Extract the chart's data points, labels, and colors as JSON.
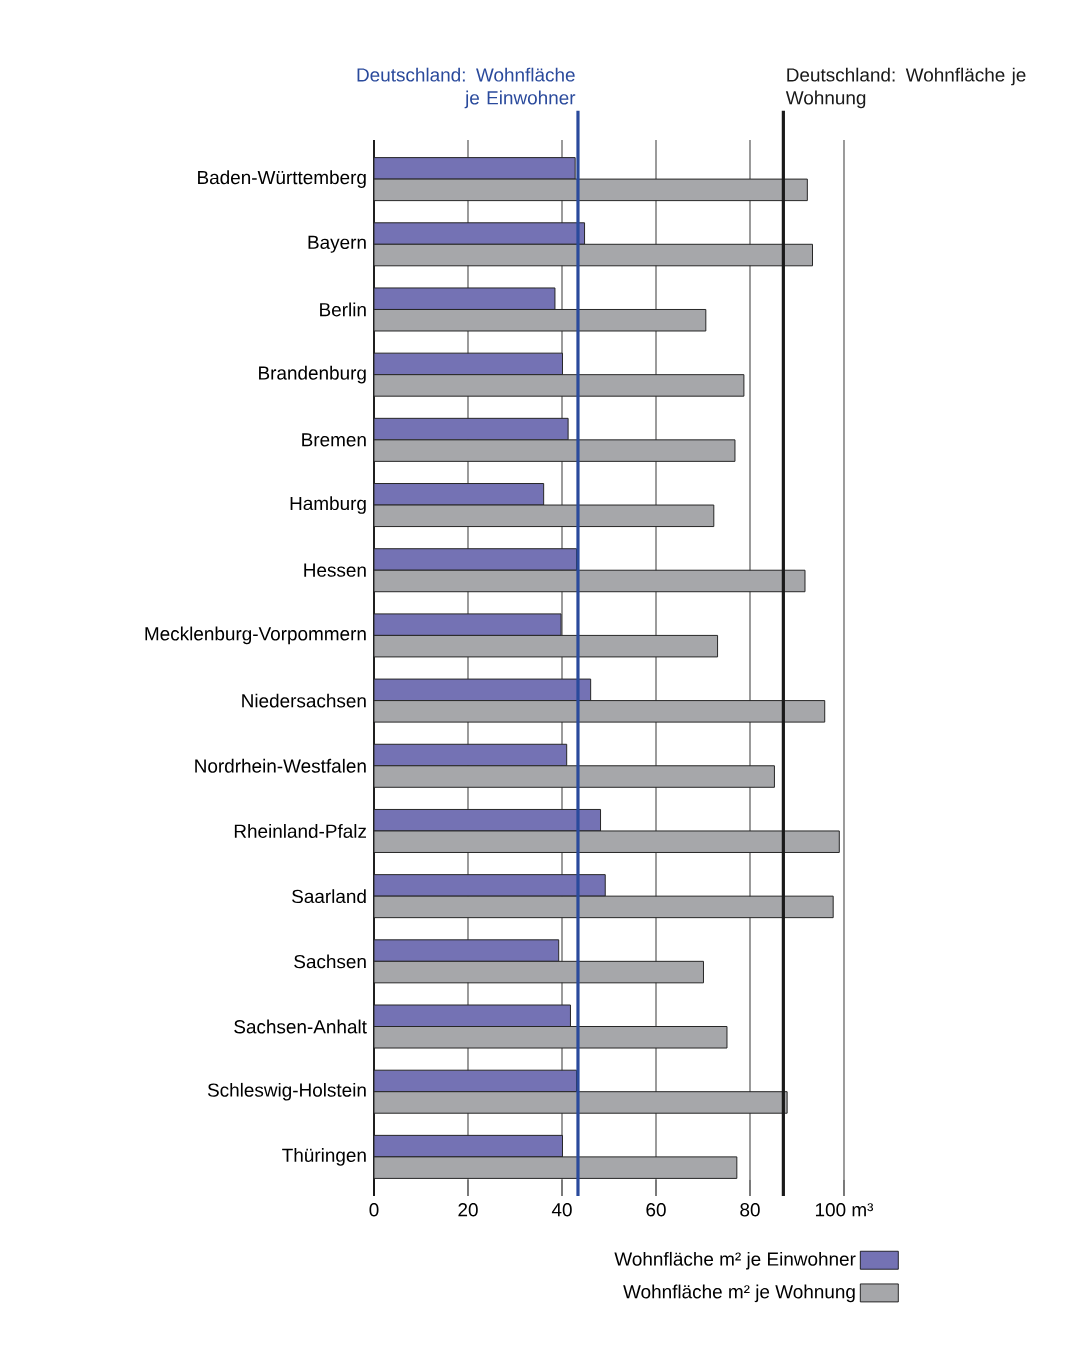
{
  "chart_data": {
    "type": "bar",
    "orientation": "horizontal",
    "categories": [
      "Baden-Württemberg",
      "Bayern",
      "Berlin",
      "Brandenburg",
      "Bremen",
      "Hamburg",
      "Hessen",
      "Mecklenburg-Vorpommern",
      "Niedersachsen",
      "Nordrhein-Westfalen",
      "Rheinland-Pfalz",
      "Saarland",
      "Sachsen",
      "Sachsen-Anhalt",
      "Schleswig-Holstein",
      "Thüringen"
    ],
    "series": [
      {
        "name": "Wohnfläche m² je Einwohner",
        "color": "#7472b4",
        "values": [
          42.8,
          44.8,
          38.5,
          40.1,
          41.3,
          36.1,
          43.1,
          39.8,
          46.1,
          41.0,
          48.2,
          49.2,
          39.3,
          41.8,
          43.1,
          40.1
        ]
      },
      {
        "name": "Wohnfläche m² je Wohnung",
        "color": "#a6a7aa",
        "values": [
          92.2,
          93.3,
          70.6,
          78.7,
          76.8,
          72.3,
          91.7,
          73.1,
          95.9,
          85.2,
          99.0,
          97.7,
          70.1,
          75.1,
          87.9,
          77.2
        ]
      }
    ],
    "xlim": [
      0,
      100
    ],
    "xticks": [
      0,
      20,
      40,
      60,
      80,
      {
        "value": 100,
        "label": "100 m³"
      }
    ],
    "grid": "x",
    "legend": "bottom right",
    "ref_lines": [
      {
        "axis": "x",
        "value": 43.4,
        "label": "Deutschland: Wohnfläche je Einwohner",
        "color": "#2a4a9c"
      },
      {
        "axis": "x",
        "value": 87.1,
        "label": "Deutschland: Wohnfläche je Wohnung",
        "color": "#1a1a1a"
      }
    ]
  }
}
